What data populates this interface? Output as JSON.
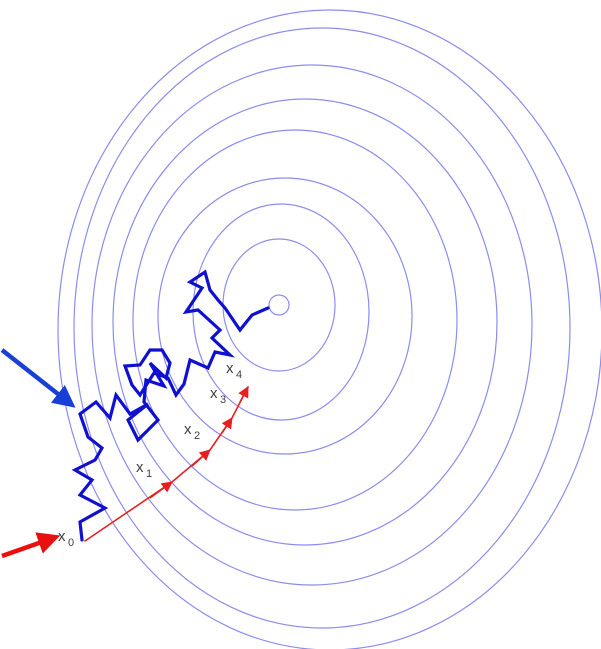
{
  "colors": {
    "contour": "#8c8cf0",
    "sgd_path": "#1010d0",
    "gd_path": "#e62020",
    "pointer_blue": "#1a3fd6",
    "pointer_red": "#e81010",
    "label": "#404040"
  },
  "labels": [
    {
      "base": "x",
      "sub": "0"
    },
    {
      "base": "x",
      "sub": "1"
    },
    {
      "base": "x",
      "sub": "2"
    },
    {
      "base": "x",
      "sub": "3"
    },
    {
      "base": "x",
      "sub": "4"
    }
  ]
}
